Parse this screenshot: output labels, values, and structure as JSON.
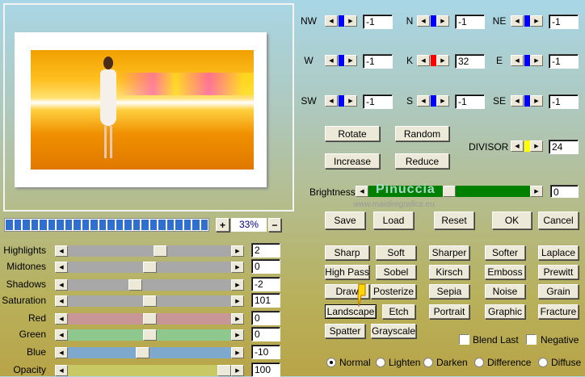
{
  "colors": {
    "slider_thumb_blue": "#0000ff",
    "slider_thumb_red": "#ff0000",
    "divisor_thumb": "#ffff00",
    "brightness_track": "#008000",
    "progress": "#2f6fd0"
  },
  "preview": {
    "zoom_in_label": "+",
    "zoom_value": "33%",
    "zoom_out_label": "−",
    "progress_segments": 24
  },
  "adjustments": [
    {
      "label": "Highlights",
      "value": "2",
      "level": 0.57,
      "track": "#a8a8a8"
    },
    {
      "label": "Midtones",
      "value": "0",
      "level": 0.5,
      "track": "#a8a8a8"
    },
    {
      "label": "Shadows",
      "value": "-2",
      "level": 0.4,
      "track": "#a8a8a8"
    },
    {
      "label": "Saturation",
      "value": "101",
      "level": 0.5,
      "track": "#a8a8a8"
    },
    {
      "label": "Red",
      "value": "0",
      "level": 0.5,
      "track": "#c89696"
    },
    {
      "label": "Green",
      "value": "0",
      "level": 0.5,
      "track": "#8ec88e"
    },
    {
      "label": "Blue",
      "value": "-10",
      "level": 0.45,
      "track": "#7ea8cc"
    },
    {
      "label": "Opacity",
      "value": "100",
      "level": 1.0,
      "track": "#c8c864"
    }
  ],
  "matrix": [
    {
      "label": "NW",
      "value": "-1",
      "thumb": "blue"
    },
    {
      "label": "N",
      "value": "-1",
      "thumb": "blue"
    },
    {
      "label": "NE",
      "value": "-1",
      "thumb": "blue"
    },
    {
      "label": "W",
      "value": "-1",
      "thumb": "blue"
    },
    {
      "label": "K",
      "value": "32",
      "thumb": "red"
    },
    {
      "label": "E",
      "value": "-1",
      "thumb": "blue"
    },
    {
      "label": "SW",
      "value": "-1",
      "thumb": "blue"
    },
    {
      "label": "S",
      "value": "-1",
      "thumb": "blue"
    },
    {
      "label": "SE",
      "value": "-1",
      "thumb": "blue"
    }
  ],
  "actions": {
    "rotate": "Rotate",
    "random": "Random",
    "increase": "Increase",
    "reduce": "Reduce",
    "divisor_label": "DIVISOR",
    "divisor_value": "24"
  },
  "brightness": {
    "label": "Brightness",
    "value": "0",
    "level": 0.5,
    "watermark": "Pinuccia",
    "watermark_url": "www.maidiregrafica.eu"
  },
  "dialog": {
    "save": "Save",
    "load": "Load",
    "reset": "Reset",
    "ok": "OK",
    "cancel": "Cancel"
  },
  "filters": [
    "Sharp",
    "Soft",
    "Sharper",
    "Softer",
    "Laplace",
    "High Pass",
    "Sobel",
    "Kirsch",
    "Emboss",
    "Prewitt",
    "Draw",
    "Posterize",
    "Sepia",
    "Noise",
    "Grain",
    "Landscape",
    "Etch",
    "Portrait",
    "Graphic",
    "Fracture",
    "Spatter",
    "Grayscale"
  ],
  "selected_filter": "Landscape",
  "options": {
    "blend_last": "Blend Last",
    "negative": "Negative"
  },
  "modes": [
    "Normal",
    "Lighten",
    "Darken",
    "Difference",
    "Diffuse"
  ],
  "selected_mode": "Normal"
}
